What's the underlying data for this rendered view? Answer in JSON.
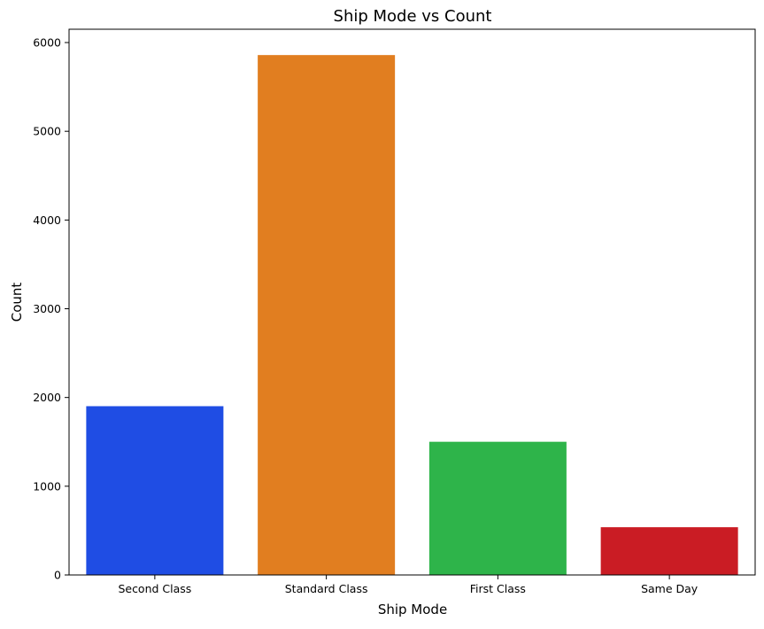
{
  "chart_data": {
    "type": "bar",
    "title": "Ship Mode vs Count",
    "xlabel": "Ship Mode",
    "ylabel": "Count",
    "categories": [
      "Second Class",
      "Standard Class",
      "First Class",
      "Same Day"
    ],
    "values": [
      1902,
      5859,
      1501,
      538
    ],
    "colors": [
      "#1f4de4",
      "#e17e20",
      "#2eb44a",
      "#ca1c24"
    ],
    "ylim": [
      0,
      6150
    ],
    "yticks": [
      0,
      1000,
      2000,
      3000,
      4000,
      5000,
      6000
    ],
    "grid": false,
    "legend": "none"
  }
}
